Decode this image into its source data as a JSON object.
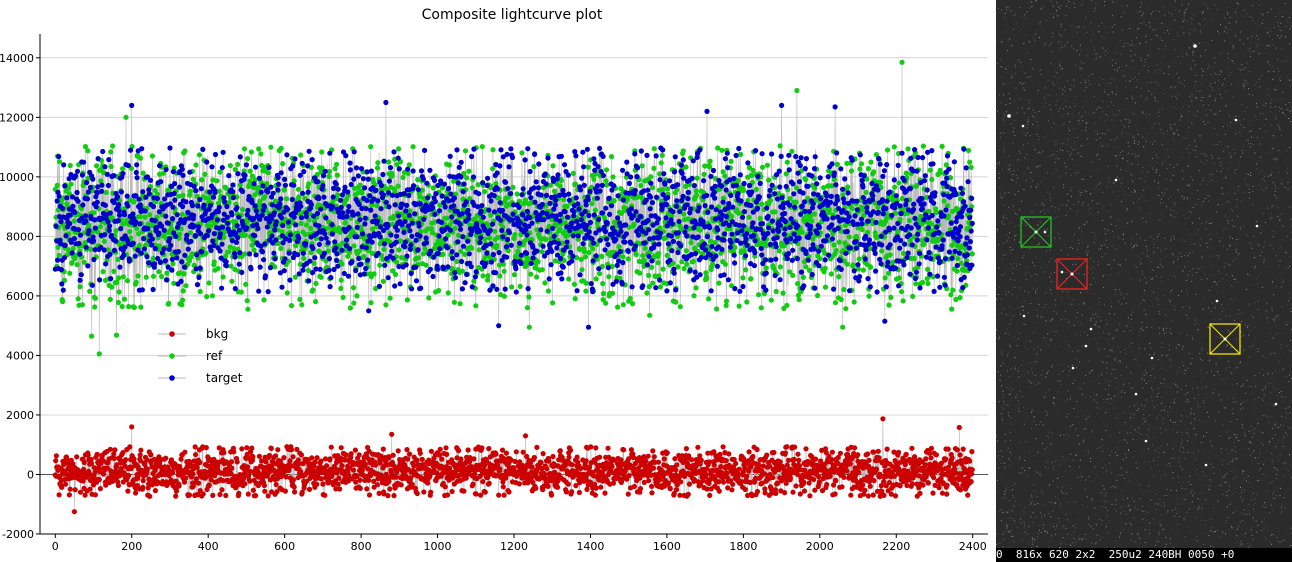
{
  "chart_data": {
    "type": "scatter",
    "title": "Composite lightcurve plot",
    "xlim": [
      -40,
      2440
    ],
    "ylim": [
      -2000,
      14800
    ],
    "xticks": [
      0,
      200,
      400,
      600,
      800,
      1000,
      1200,
      1400,
      1600,
      1800,
      2000,
      2200,
      2400
    ],
    "yticks": [
      -2000,
      0,
      2000,
      4000,
      6000,
      8000,
      10000,
      12000,
      14000
    ],
    "grid": "horizontal",
    "legend_position": "center-left",
    "n_points": 2400,
    "series": [
      {
        "name": "bkg",
        "color": "#cc0000",
        "mean": 100,
        "spread": 380,
        "highlights": [
          [
            50,
            -1250
          ],
          [
            200,
            1600
          ],
          [
            2165,
            1870
          ],
          [
            2365,
            1580
          ],
          [
            880,
            1350
          ],
          [
            1230,
            1300
          ]
        ]
      },
      {
        "name": "ref",
        "color": "#11cc11",
        "mean": 8300,
        "spread": 1250,
        "highlights": [
          [
            115,
            4050
          ],
          [
            160,
            4680
          ],
          [
            95,
            4650
          ],
          [
            2215,
            13850
          ],
          [
            1940,
            12900
          ],
          [
            185,
            12000
          ],
          [
            1555,
            5350
          ],
          [
            2060,
            4950
          ],
          [
            1240,
            4950
          ]
        ]
      },
      {
        "name": "target",
        "color": "#0000cc",
        "mean": 8550,
        "spread": 1100,
        "highlights": [
          [
            865,
            12500
          ],
          [
            200,
            12400
          ],
          [
            1160,
            5000
          ],
          [
            1395,
            4950
          ],
          [
            2170,
            5150
          ],
          [
            1705,
            12200
          ],
          [
            2040,
            12350
          ],
          [
            1900,
            12400
          ],
          [
            820,
            5500
          ]
        ]
      }
    ]
  },
  "image_view": {
    "status_text": "0  816x 620 2x2  250u2 240BH 0050 +0",
    "markers": [
      {
        "name": "ref",
        "color": "#22cc22"
      },
      {
        "name": "target",
        "color": "#ff2222"
      },
      {
        "name": "check",
        "color": "#ffee00"
      }
    ]
  }
}
